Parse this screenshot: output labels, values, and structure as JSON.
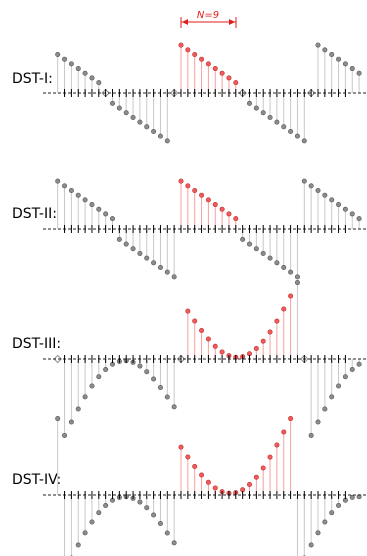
{
  "annotation": {
    "text": "N=9",
    "color": "#e21b1b"
  },
  "colors": {
    "highlight": "#f05a5a",
    "highlight_stem": "#f4a0a0",
    "normal_dot": "#8c8c8c",
    "normal_stem": "#c8c8c8",
    "axis": "#222222",
    "ticks": "#000000"
  },
  "panels": [
    {
      "label": "DST-I:",
      "variant": "I"
    },
    {
      "label": "DST-II:",
      "variant": "II"
    },
    {
      "label": "DST-III:",
      "variant": "III"
    },
    {
      "label": "DST-IV:",
      "variant": "IV"
    }
  ]
}
